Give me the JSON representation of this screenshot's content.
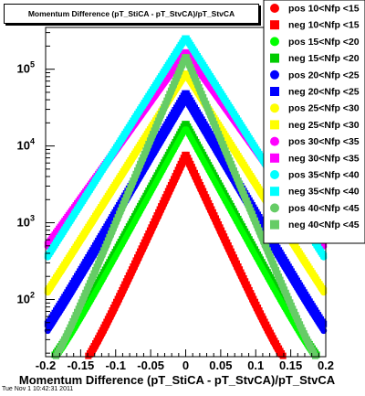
{
  "colors": {
    "pos10": "#ff0000",
    "neg10": "#ff0000",
    "pos15": "#00ff00",
    "neg15": "#00cc00",
    "pos20": "#0000ff",
    "neg20": "#0000ff",
    "pos25": "#ffff00",
    "neg25": "#ffff00",
    "pos30": "#ff00ff",
    "neg30": "#ff00ff",
    "pos35": "#00ffff",
    "neg35": "#00ffff",
    "pos40": "#66cc66",
    "neg40": "#66cc66"
  },
  "timestamp": "Tue Nov  1 10:42:31 2011",
  "chart_data": {
    "type": "scatter",
    "title": "Momentum Difference (pT_StiCA - pT_StvCA)/pT_StvCA",
    "xlabel": "Momentum Difference (pT_StiCA - pT_StvCA)/pT_StvCA",
    "ylabel": "",
    "xlim": [
      -0.2,
      0.2
    ],
    "ylim": [
      18,
      350000
    ],
    "yscale": "log",
    "x_ticks": [
      "-0.2",
      "-0.15",
      "-0.1",
      "-0.05",
      "0",
      "0.05",
      "0.1",
      "0.15",
      "0.2"
    ],
    "y_ticks": [
      {
        "base": "10",
        "exp": "2",
        "value": 100
      },
      {
        "base": "10",
        "exp": "3",
        "value": 1000
      },
      {
        "base": "10",
        "exp": "4",
        "value": 10000
      },
      {
        "base": "10",
        "exp": "5",
        "value": 100000
      }
    ],
    "grid": false,
    "legend_position": "right",
    "series": [
      {
        "name": "pos 10<Nfp <15",
        "color": "#ff0000",
        "marker": "circle",
        "peak": 7000,
        "width": 0.022
      },
      {
        "name": "neg 10<Nfp <15",
        "color": "#ff0000",
        "marker": "square",
        "peak": 8000,
        "width": 0.022
      },
      {
        "name": "pos 15<Nfp <20",
        "color": "#00ff00",
        "marker": "circle",
        "peak": 17000,
        "width": 0.026
      },
      {
        "name": "neg 15<Nfp <20",
        "color": "#00cc00",
        "marker": "square",
        "peak": 20000,
        "width": 0.026
      },
      {
        "name": "pos 20<Nfp <25",
        "color": "#0000ff",
        "marker": "circle",
        "peak": 40000,
        "width": 0.028
      },
      {
        "name": "neg 20<Nfp <25",
        "color": "#0000ff",
        "marker": "square",
        "peak": 50000,
        "width": 0.028
      },
      {
        "name": "pos 25<Nfp <30",
        "color": "#ffff00",
        "marker": "circle",
        "peak": 85000,
        "width": 0.03
      },
      {
        "name": "neg 25<Nfp <30",
        "color": "#ffff00",
        "marker": "square",
        "peak": 90000,
        "width": 0.03
      },
      {
        "name": "pos 30<Nfp <35",
        "color": "#ff00ff",
        "marker": "circle",
        "peak": 160000,
        "width": 0.034
      },
      {
        "name": "neg 30<Nfp <35",
        "color": "#ff00ff",
        "marker": "square",
        "peak": 170000,
        "width": 0.034
      },
      {
        "name": "pos 35<Nfp <40",
        "color": "#00ffff",
        "marker": "circle",
        "peak": 250000,
        "width": 0.03
      },
      {
        "name": "neg 35<Nfp <40",
        "color": "#00ffff",
        "marker": "square",
        "peak": 260000,
        "width": 0.03
      },
      {
        "name": "pos 40<Nfp <45",
        "color": "#66cc66",
        "marker": "circle",
        "peak": 140000,
        "width": 0.02
      },
      {
        "name": "neg 40<Nfp <45",
        "color": "#66cc66",
        "marker": "square",
        "peak": 150000,
        "width": 0.02
      }
    ]
  }
}
